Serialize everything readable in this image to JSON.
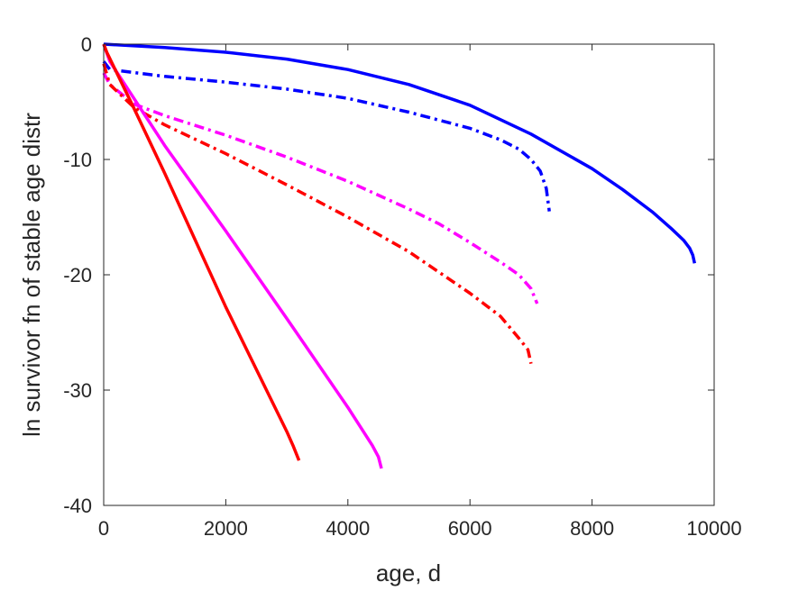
{
  "chart_data": {
    "type": "line",
    "xlabel": "age, d",
    "ylabel": "ln survivor fn of stable age distr",
    "xlim": [
      0,
      10000
    ],
    "ylim": [
      -40,
      0
    ],
    "xticks": [
      0,
      2000,
      4000,
      6000,
      8000,
      10000
    ],
    "yticks": [
      -40,
      -30,
      -20,
      -10,
      0
    ],
    "xtick_labels": [
      "0",
      "2000",
      "4000",
      "6000",
      "8000",
      "10000"
    ],
    "ytick_labels": [
      "-40",
      "-30",
      "-20",
      "-10",
      "0"
    ],
    "grid": false,
    "legend": "none",
    "series": [
      {
        "color": "#0000ff",
        "dash": "solid",
        "x": [
          0,
          1000,
          2000,
          3000,
          4000,
          5000,
          6000,
          7000,
          8000,
          8500,
          9000,
          9300,
          9500,
          9600,
          9650,
          9680
        ],
        "y": [
          0,
          -0.3,
          -0.7,
          -1.3,
          -2.2,
          -3.5,
          -5.3,
          -7.8,
          -10.8,
          -12.6,
          -14.6,
          -16.0,
          -17.0,
          -17.7,
          -18.3,
          -19.0
        ]
      },
      {
        "color": "#0000ff",
        "dash": "dashdot",
        "x": [
          0,
          100,
          1000,
          2000,
          3000,
          4000,
          5000,
          6000,
          6500,
          6800,
          7000,
          7150,
          7250,
          7300
        ],
        "y": [
          -1.5,
          -2.2,
          -2.8,
          -3.3,
          -3.9,
          -4.7,
          -5.9,
          -7.3,
          -8.3,
          -9.1,
          -10.0,
          -11.0,
          -12.5,
          -14.5
        ]
      },
      {
        "color": "#ff00ff",
        "dash": "dashdot",
        "x": [
          0,
          100,
          500,
          1000,
          2000,
          3000,
          4000,
          5000,
          5500,
          6000,
          6500,
          6800,
          7000,
          7100
        ],
        "y": [
          -2.5,
          -3.5,
          -5.2,
          -6.2,
          -7.9,
          -9.8,
          -11.9,
          -14.3,
          -15.6,
          -17.2,
          -18.9,
          -20.0,
          -21.2,
          -22.5
        ]
      },
      {
        "color": "#ff0000",
        "dash": "dashdot",
        "x": [
          0,
          100,
          500,
          1000,
          2000,
          3000,
          4000,
          5000,
          6000,
          6500,
          6800,
          6950,
          7000
        ],
        "y": [
          -1.7,
          -3.5,
          -5.5,
          -7.0,
          -9.5,
          -12.2,
          -15.0,
          -18.0,
          -21.6,
          -23.6,
          -25.5,
          -26.5,
          -27.7
        ]
      },
      {
        "color": "#ff00ff",
        "dash": "solid",
        "x": [
          0,
          100,
          1000,
          2000,
          3000,
          4000,
          4400,
          4500,
          4550
        ],
        "y": [
          0,
          -1.5,
          -8.8,
          -16.2,
          -23.8,
          -31.5,
          -34.8,
          -35.8,
          -36.8
        ]
      },
      {
        "color": "#ff0000",
        "dash": "solid",
        "x": [
          0,
          50,
          500,
          1000,
          2000,
          3000,
          3100,
          3200
        ],
        "y": [
          0,
          -0.7,
          -5.6,
          -11.2,
          -22.8,
          -33.6,
          -34.8,
          -36.1
        ]
      }
    ]
  }
}
